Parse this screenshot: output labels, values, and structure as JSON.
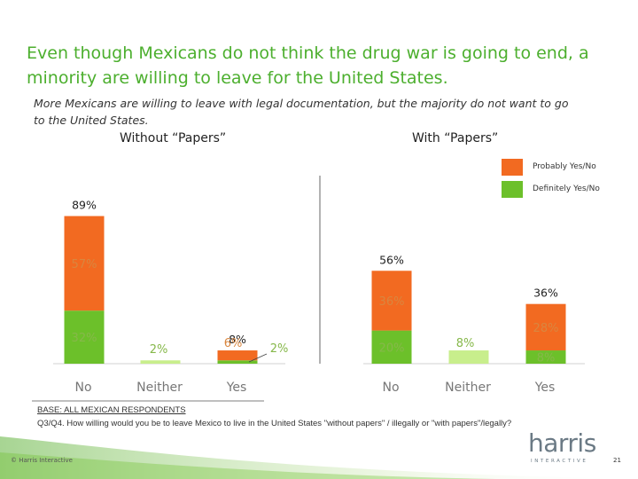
{
  "slide": {
    "title": "Even though Mexicans do not think the drug war is going to end, a minority are willing to leave for the United States.",
    "subtitle": "More Mexicans are willing to leave with legal documentation, but the majority do not want to  go to the United States.",
    "copyright": "© Harris Interactive",
    "page_number": "21"
  },
  "base": {
    "heading": "BASE: ALL MEXICAN RESPONDENTS",
    "question": "Q3/Q4. How willing would you be to leave Mexico to live in the United States \"without papers\" / illegally or \"with papers\"/legally?"
  },
  "logo": {
    "word": "harris",
    "tagline": "INTERACTIVE"
  },
  "colors": {
    "title_green": "#4caf2e",
    "orange": "#f26a21",
    "green": "#6cc02a",
    "light_green": "#c8ee8c",
    "label_orange": "#d9863f",
    "label_green": "#86b84a"
  },
  "chart_data": {
    "type": "bar",
    "stacked": true,
    "legend": [
      {
        "name": "Probably Yes/No",
        "color": "#f26a21"
      },
      {
        "name": "Definitely Yes/No",
        "color": "#6cc02a"
      }
    ],
    "panels": [
      {
        "title": "Without “Papers”",
        "categories": [
          "No",
          "Neither",
          "Yes"
        ],
        "series": [
          {
            "name": "Definitely Yes/No",
            "values": [
              32,
              null,
              2
            ],
            "labels": [
              "32%",
              null,
              "2%"
            ]
          },
          {
            "name": "Probably Yes/No",
            "values": [
              57,
              null,
              6
            ],
            "labels": [
              "57%",
              null,
              "6%"
            ]
          },
          {
            "name": "Neither",
            "values": [
              null,
              2,
              null
            ],
            "labels": [
              null,
              "2%",
              null
            ]
          }
        ],
        "totals": [
          "89%",
          null,
          "8%"
        ]
      },
      {
        "title": "With “Papers”",
        "categories": [
          "No",
          "Neither",
          "Yes"
        ],
        "series": [
          {
            "name": "Definitely Yes/No",
            "values": [
              20,
              null,
              8
            ],
            "labels": [
              "20%",
              null,
              "8%"
            ]
          },
          {
            "name": "Probably Yes/No",
            "values": [
              36,
              null,
              28
            ],
            "labels": [
              "36%",
              null,
              "28%"
            ]
          },
          {
            "name": "Neither",
            "values": [
              null,
              8,
              null
            ],
            "labels": [
              null,
              "8%",
              null
            ]
          }
        ],
        "totals": [
          "56%",
          null,
          "36%"
        ]
      }
    ],
    "ylim": [
      0,
      100
    ]
  }
}
